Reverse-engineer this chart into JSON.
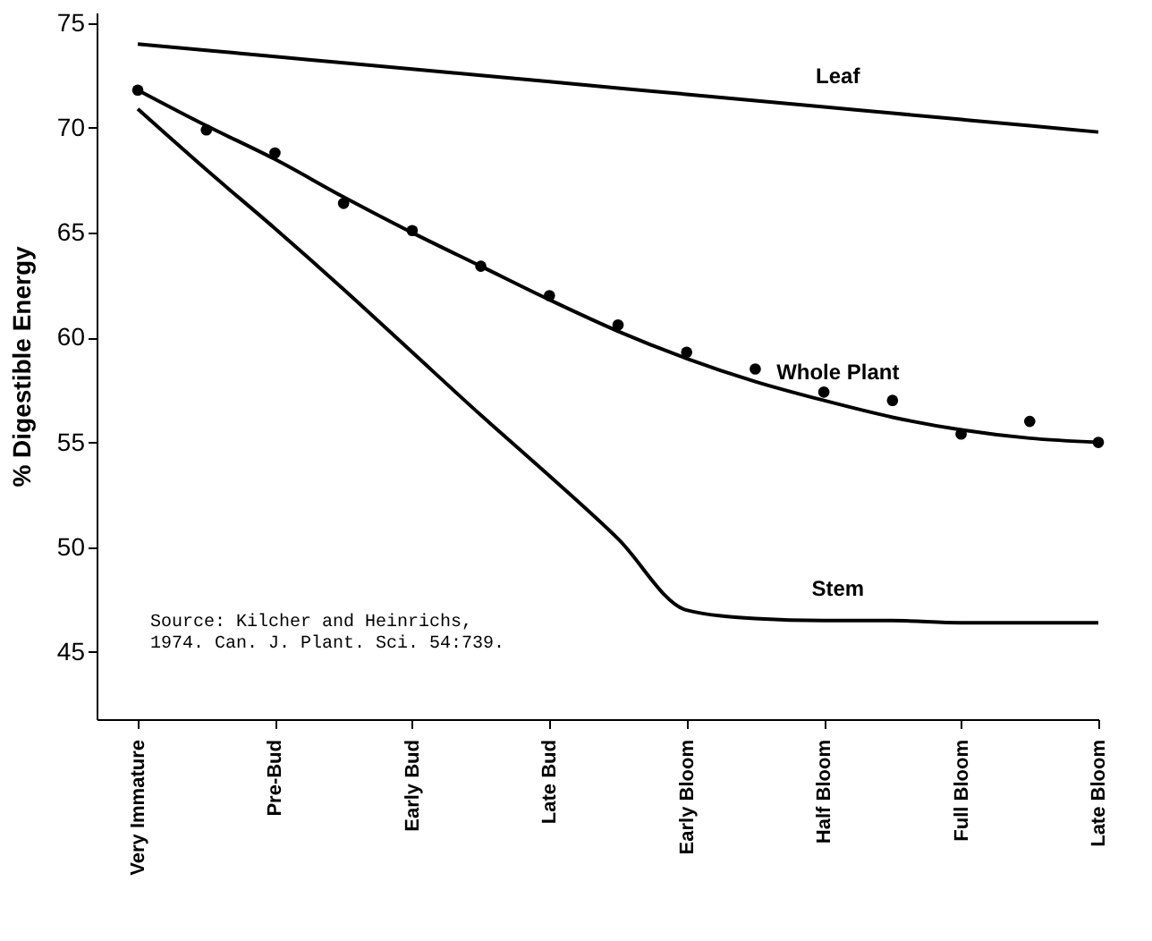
{
  "chart_data": {
    "type": "line",
    "ylabel": "% Digestible Energy",
    "categories": [
      "Very Immature",
      null,
      "Pre-Bud",
      null,
      "Early Bud",
      null,
      "Late Bud",
      null,
      "Early Bloom",
      null,
      "Half Bloom",
      null,
      "Full Bloom",
      null,
      "Late Bloom"
    ],
    "ylim": [
      41.8,
      75.5
    ],
    "yticks": [
      45,
      50,
      55,
      60,
      65,
      70,
      75
    ],
    "grid": false,
    "line_style": "solid",
    "series": [
      {
        "name": "Leaf",
        "color": "#000000",
        "values": [
          74.0,
          73.7,
          73.4,
          73.1,
          72.8,
          72.5,
          72.2,
          71.9,
          71.6,
          71.3,
          71.0,
          70.7,
          70.4,
          70.1,
          69.8
        ]
      },
      {
        "name": "Whole Plant",
        "color": "#000000",
        "values": [
          71.8,
          70.1,
          68.5,
          66.7,
          65.0,
          63.4,
          61.8,
          60.3,
          59.0,
          57.9,
          57.0,
          56.2,
          55.6,
          55.2,
          55.0
        ]
      },
      {
        "name": "Stem",
        "color": "#000000",
        "values": [
          70.9,
          68.0,
          65.2,
          62.3,
          59.3,
          56.3,
          53.4,
          50.4,
          47.0,
          46.6,
          46.5,
          46.5,
          46.4,
          46.4,
          46.4
        ]
      },
      {
        "type": "scatter",
        "marker": "circle",
        "color": "#000000",
        "values": [
          71.8,
          69.9,
          68.8,
          66.4,
          65.1,
          63.4,
          62.0,
          60.6,
          59.3,
          58.5,
          57.4,
          57.0,
          55.4,
          56.0,
          55.0
        ]
      }
    ],
    "annotations": [
      "Source: Kilcher and Heinrichs,\n1974. Can. J. Plant. Sci. 54:739."
    ]
  }
}
